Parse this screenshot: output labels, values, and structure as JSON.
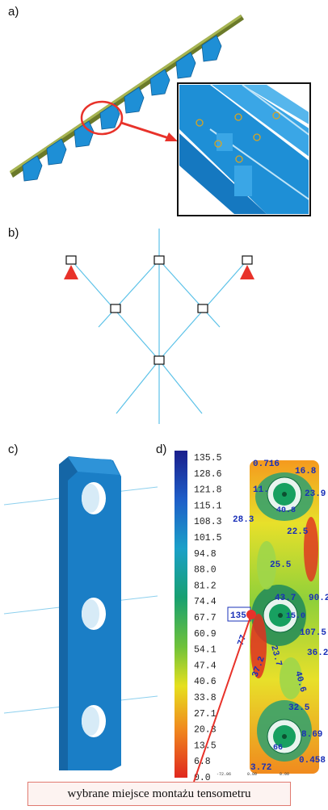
{
  "panels": {
    "a": "a)",
    "b": "b)",
    "c": "c)",
    "d": "d)"
  },
  "colorbar": {
    "ticks": [
      "135.5",
      "128.6",
      "121.8",
      "115.1",
      "108.3",
      "101.5",
      "94.8",
      "88.0",
      "81.2",
      "74.4",
      "67.7",
      "60.9",
      "54.1",
      "47.4",
      "40.6",
      "33.8",
      "27.1",
      "20.3",
      "13.5",
      "6.8",
      "0.0"
    ],
    "bottom_small": [
      "-72.06",
      "0.00",
      "0.00"
    ]
  },
  "stress_labels": {
    "l1": "0.716",
    "l2": "16.8",
    "l3": "11.",
    "l4": "23.9",
    "l5": "28.3",
    "l6": "40.8",
    "l7": "22.5",
    "l8": "25.5",
    "l9": "43.7",
    "l10": "90.2",
    "l11": "135",
    "l12": "15.0",
    "l13": "107.5",
    "l14": "77",
    "l15": "36.2",
    "l16": "37.2",
    "l17": "23.7",
    "l18": "40.6",
    "l19": "32.5",
    "l20": "8.69",
    "l21": "66",
    "l22": "0.458",
    "l23": "3.72"
  },
  "caption": "wybrane miejsce montażu tensometru",
  "colors": {
    "beam_blue": "#1e8fd6",
    "rail_green": "#6b7a2a",
    "highlight_red": "#e8322a",
    "line_cyan": "#5cc2e8"
  }
}
